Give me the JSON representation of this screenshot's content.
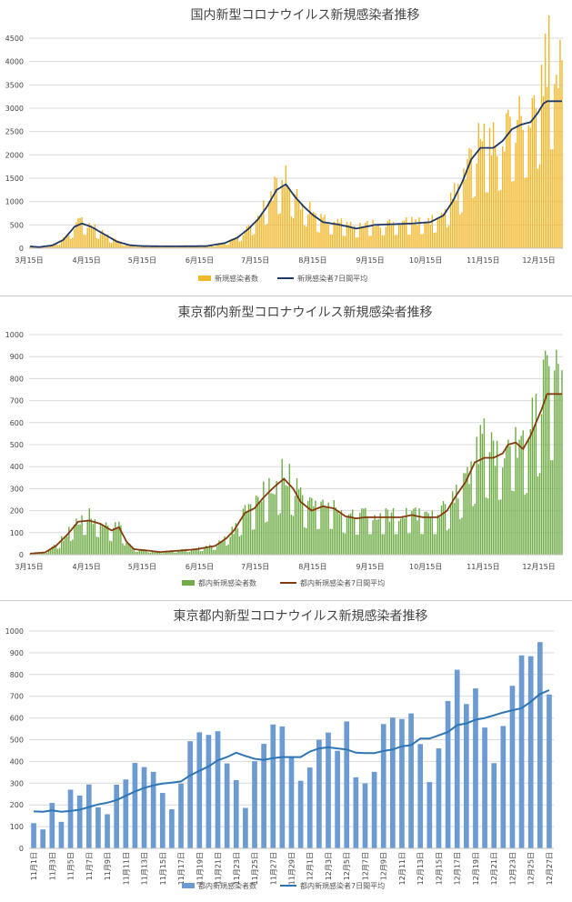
{
  "chart_data": [
    {
      "type": "bar",
      "title": "国内新型コロナウイルス新規感染者推移",
      "xlabel": "",
      "ylabel": "",
      "ylim": [
        0,
        4500
      ],
      "yticks": [
        0,
        500,
        1000,
        1500,
        2000,
        2500,
        3000,
        3500,
        4000,
        4500
      ],
      "x_tick_labels": [
        "3月15日",
        "4月15日",
        "5月15日",
        "6月15日",
        "7月15日",
        "8月15日",
        "9月15日",
        "10月15日",
        "11月15日",
        "12月15日"
      ],
      "x_range": [
        "3月15日",
        "12月27日"
      ],
      "bar_color": "#f2b82c",
      "line_color": "#1f3864",
      "grid": true,
      "legend_position": "bottom",
      "series": [
        {
          "name": "新規感染者数",
          "kind": "bar",
          "anchors": [
            [
              0,
              40
            ],
            [
              5,
              25
            ],
            [
              12,
              60
            ],
            [
              18,
              180
            ],
            [
              24,
              460
            ],
            [
              28,
              560
            ],
            [
              33,
              460
            ],
            [
              40,
              300
            ],
            [
              47,
              140
            ],
            [
              54,
              65
            ],
            [
              61,
              45
            ],
            [
              75,
              40
            ],
            [
              95,
              45
            ],
            [
              105,
              110
            ],
            [
              112,
              230
            ],
            [
              118,
              420
            ],
            [
              123,
              650
            ],
            [
              128,
              960
            ],
            [
              133,
              1300
            ],
            [
              138,
              1450
            ],
            [
              143,
              1100
            ],
            [
              148,
              880
            ],
            [
              153,
              700
            ],
            [
              158,
              560
            ],
            [
              166,
              520
            ],
            [
              171,
              470
            ],
            [
              176,
              420
            ],
            [
              186,
              500
            ],
            [
              206,
              530
            ],
            [
              216,
              560
            ],
            [
              223,
              700
            ],
            [
              228,
              1000
            ],
            [
              233,
              1400
            ],
            [
              238,
              1900
            ],
            [
              243,
              2200
            ],
            [
              250,
              2150
            ],
            [
              255,
              2300
            ],
            [
              260,
              2600
            ],
            [
              265,
              2700
            ],
            [
              270,
              2800
            ],
            [
              274,
              3100
            ],
            [
              277,
              3600
            ],
            [
              279,
              3850
            ]
          ]
        },
        {
          "name": "新規感染者7日間平均",
          "kind": "line",
          "anchors": [
            [
              0,
              40
            ],
            [
              5,
              25
            ],
            [
              12,
              60
            ],
            [
              18,
              180
            ],
            [
              24,
              460
            ],
            [
              28,
              530
            ],
            [
              33,
              460
            ],
            [
              40,
              300
            ],
            [
              47,
              140
            ],
            [
              54,
              65
            ],
            [
              61,
              45
            ],
            [
              75,
              40
            ],
            [
              95,
              45
            ],
            [
              105,
              110
            ],
            [
              112,
              230
            ],
            [
              118,
              420
            ],
            [
              123,
              620
            ],
            [
              128,
              900
            ],
            [
              133,
              1250
            ],
            [
              138,
              1370
            ],
            [
              143,
              1100
            ],
            [
              148,
              880
            ],
            [
              153,
              700
            ],
            [
              158,
              560
            ],
            [
              166,
              510
            ],
            [
              171,
              470
            ],
            [
              176,
              420
            ],
            [
              186,
              500
            ],
            [
              206,
              530
            ],
            [
              216,
              560
            ],
            [
              223,
              700
            ],
            [
              228,
              1000
            ],
            [
              233,
              1400
            ],
            [
              238,
              1900
            ],
            [
              243,
              2150
            ],
            [
              250,
              2150
            ],
            [
              255,
              2300
            ],
            [
              260,
              2550
            ],
            [
              265,
              2650
            ],
            [
              270,
              2700
            ],
            [
              274,
              2900
            ],
            [
              277,
              3100
            ],
            [
              279,
              3150
            ]
          ]
        }
      ]
    },
    {
      "type": "bar",
      "title": "東京都内新型コロナウイルス新規感染者推移",
      "xlabel": "",
      "ylabel": "",
      "ylim": [
        0,
        1000
      ],
      "yticks": [
        0,
        100,
        200,
        300,
        400,
        500,
        600,
        700,
        800,
        900,
        1000
      ],
      "x_tick_labels": [
        "3月15日",
        "4月15日",
        "5月15日",
        "6月15日",
        "7月15日",
        "8月15日",
        "9月15日",
        "10月15日",
        "11月15日",
        "12月15日"
      ],
      "x_range": [
        "3月15日",
        "12月27日"
      ],
      "bar_color": "#70ad47",
      "line_color": "#843c0c",
      "grid": true,
      "legend_position": "bottom",
      "series": [
        {
          "name": "都内新規感染者数",
          "kind": "bar",
          "anchors": [
            [
              0,
              5
            ],
            [
              8,
              10
            ],
            [
              14,
              40
            ],
            [
              20,
              90
            ],
            [
              26,
              160
            ],
            [
              32,
              165
            ],
            [
              38,
              140
            ],
            [
              44,
              110
            ],
            [
              48,
              125
            ],
            [
              52,
              60
            ],
            [
              56,
              25
            ],
            [
              62,
              20
            ],
            [
              70,
              12
            ],
            [
              80,
              18
            ],
            [
              90,
              25
            ],
            [
              100,
              40
            ],
            [
              106,
              75
            ],
            [
              110,
              110
            ],
            [
              116,
              190
            ],
            [
              121,
              210
            ],
            [
              126,
              260
            ],
            [
              132,
              300
            ],
            [
              137,
              370
            ],
            [
              142,
              320
            ],
            [
              146,
              240
            ],
            [
              152,
              200
            ],
            [
              158,
              220
            ],
            [
              164,
              210
            ],
            [
              170,
              175
            ],
            [
              176,
              165
            ],
            [
              181,
              170
            ],
            [
              190,
              170
            ],
            [
              200,
              170
            ],
            [
              206,
              180
            ],
            [
              212,
              170
            ],
            [
              220,
              170
            ],
            [
              225,
              200
            ],
            [
              230,
              270
            ],
            [
              235,
              330
            ],
            [
              240,
              420
            ],
            [
              245,
              480
            ],
            [
              250,
              440
            ],
            [
              255,
              460
            ],
            [
              258,
              540
            ],
            [
              262,
              520
            ],
            [
              266,
              480
            ],
            [
              270,
              540
            ],
            [
              273,
              620
            ],
            [
              276,
              700
            ],
            [
              279,
              780
            ]
          ]
        },
        {
          "name": "都内新規感染者7日間平均",
          "kind": "line",
          "anchors": [
            [
              0,
              5
            ],
            [
              8,
              10
            ],
            [
              14,
              40
            ],
            [
              20,
              90
            ],
            [
              26,
              150
            ],
            [
              32,
              155
            ],
            [
              38,
              140
            ],
            [
              44,
              110
            ],
            [
              48,
              125
            ],
            [
              52,
              60
            ],
            [
              56,
              25
            ],
            [
              62,
              20
            ],
            [
              70,
              12
            ],
            [
              80,
              18
            ],
            [
              90,
              25
            ],
            [
              100,
              40
            ],
            [
              106,
              75
            ],
            [
              110,
              110
            ],
            [
              116,
              190
            ],
            [
              121,
              210
            ],
            [
              126,
              260
            ],
            [
              132,
              310
            ],
            [
              137,
              345
            ],
            [
              142,
              300
            ],
            [
              146,
              240
            ],
            [
              152,
              200
            ],
            [
              158,
              220
            ],
            [
              164,
              210
            ],
            [
              170,
              175
            ],
            [
              176,
              165
            ],
            [
              181,
              170
            ],
            [
              190,
              170
            ],
            [
              200,
              170
            ],
            [
              206,
              180
            ],
            [
              212,
              170
            ],
            [
              220,
              170
            ],
            [
              225,
              200
            ],
            [
              230,
              270
            ],
            [
              235,
              330
            ],
            [
              240,
              420
            ],
            [
              245,
              440
            ],
            [
              250,
              440
            ],
            [
              255,
              460
            ],
            [
              258,
              500
            ],
            [
              262,
              510
            ],
            [
              266,
              480
            ],
            [
              270,
              540
            ],
            [
              273,
              600
            ],
            [
              276,
              660
            ],
            [
              279,
              730
            ]
          ]
        }
      ]
    },
    {
      "type": "bar",
      "title": "東京都内新型コロナウイルス新規感染者推移",
      "xlabel": "",
      "ylabel": "",
      "ylim": [
        0,
        1000
      ],
      "yticks": [
        0,
        100,
        200,
        300,
        400,
        500,
        600,
        700,
        800,
        900,
        1000
      ],
      "categories": [
        "11月1日",
        "11月2日",
        "11月3日",
        "11月4日",
        "11月5日",
        "11月6日",
        "11月7日",
        "11月8日",
        "11月9日",
        "11月10日",
        "11月11日",
        "11月12日",
        "11月13日",
        "11月14日",
        "11月15日",
        "11月16日",
        "11月17日",
        "11月18日",
        "11月19日",
        "11月20日",
        "11月21日",
        "11月22日",
        "11月23日",
        "11月24日",
        "11月25日",
        "11月26日",
        "11月27日",
        "11月28日",
        "11月29日",
        "11月30日",
        "12月1日",
        "12月2日",
        "12月3日",
        "12月4日",
        "12月5日",
        "12月6日",
        "12月7日",
        "12月8日",
        "12月9日",
        "12月10日",
        "12月11日",
        "12月12日",
        "12月13日",
        "12月14日",
        "12月15日",
        "12月16日",
        "12月17日",
        "12月18日",
        "12月19日",
        "12月20日",
        "12月21日",
        "12月22日",
        "12月23日",
        "12月24日",
        "12月25日",
        "12月26日",
        "12月27日"
      ],
      "x_tick_labels": [
        "11月1日",
        "11月3日",
        "11月5日",
        "11月7日",
        "11月9日",
        "11月11日",
        "11月13日",
        "11月15日",
        "11月17日",
        "11月19日",
        "11月21日",
        "11月23日",
        "11月25日",
        "11月27日",
        "11月29日",
        "12月1日",
        "12月3日",
        "12月5日",
        "12月7日",
        "12月9日",
        "12月11日",
        "12月13日",
        "12月15日",
        "12月17日",
        "12月19日",
        "12月21日",
        "12月23日",
        "12月25日",
        "12月27日"
      ],
      "bar_color": "#6b9bd2",
      "line_color": "#2e75b6",
      "grid": true,
      "legend_position": "bottom",
      "series": [
        {
          "name": "都内新規感染者数",
          "kind": "bar",
          "values": [
            116,
            87,
            209,
            122,
            270,
            243,
            294,
            189,
            157,
            293,
            317,
            393,
            374,
            352,
            255,
            180,
            298,
            493,
            534,
            522,
            539,
            391,
            314,
            186,
            401,
            481,
            570,
            561,
            418,
            311,
            372,
            500,
            533,
            449,
            584,
            327,
            299,
            352,
            572,
            602,
            595,
            621,
            480,
            305,
            460,
            678,
            822,
            664,
            736,
            556,
            392,
            563,
            748,
            888,
            884,
            949,
            708
          ]
        },
        {
          "name": "都内新規感染者7日間平均",
          "kind": "line",
          "values": [
            170,
            168,
            175,
            168,
            172,
            178,
            190,
            202,
            210,
            222,
            242,
            262,
            278,
            290,
            298,
            302,
            308,
            336,
            357,
            377,
            405,
            420,
            440,
            425,
            412,
            407,
            415,
            420,
            420,
            420,
            445,
            460,
            465,
            460,
            455,
            440,
            438,
            438,
            448,
            455,
            470,
            475,
            505,
            505,
            520,
            535,
            567,
            575,
            592,
            600,
            612,
            625,
            635,
            645,
            675,
            710,
            728
          ]
        }
      ]
    }
  ]
}
